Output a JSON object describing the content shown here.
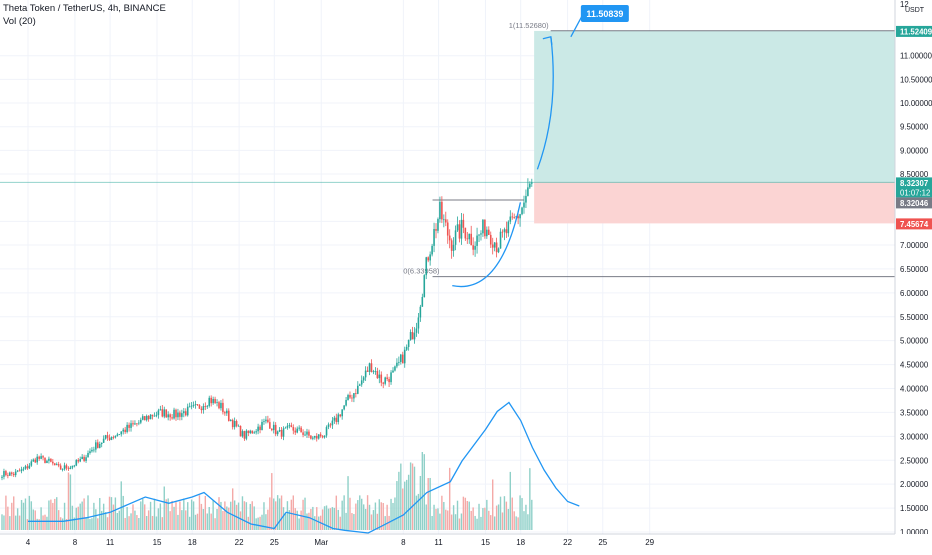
{
  "header": {
    "symbol_line": "Theta Token / TetherUS, 4h, BINANCE",
    "indicator_line": "Vol (20)"
  },
  "colors": {
    "up": "#26a69a",
    "down": "#ef5350",
    "vol_up": "#8fd0c8",
    "vol_down": "#f4a9a7",
    "vol_ma": "#2196f3",
    "target_zone": "#cbe9e6",
    "stop_zone": "#fbd4d3",
    "annotation": "#2196f3",
    "grid": "#f0f3fa",
    "axis_text": "#131722"
  },
  "chart_data": {
    "type": "candlestick",
    "title": "Theta Token / TetherUS, 4h, BINANCE",
    "price_axis": {
      "unit": "USDT",
      "min": 1.0,
      "max": 12.0,
      "tick_labels": [
        "1.00000",
        "1.50000",
        "2.00000",
        "2.50000",
        "3.00000",
        "3.50000",
        "4.00000",
        "4.50000",
        "5.00000",
        "5.50000",
        "6.00000",
        "6.50000",
        "7.00000",
        "7.50000",
        "8.50000",
        "9.00000",
        "9.50000",
        "10.00000",
        "10.50000",
        "11.00000"
      ],
      "tick_values": [
        1.0,
        1.5,
        2.0,
        2.5,
        3.0,
        3.5,
        4.0,
        4.5,
        5.0,
        5.5,
        6.0,
        6.5,
        7.0,
        7.5,
        8.5,
        9.0,
        9.5,
        10.0,
        10.5,
        11.0
      ],
      "top_tick": "12"
    },
    "time_axis": {
      "labels": [
        "4",
        "8",
        "11",
        "15",
        "18",
        "22",
        "25",
        "Mar",
        "8",
        "11",
        "15",
        "18",
        "22",
        "25",
        "29"
      ],
      "label_dates": [
        "2021-02-04",
        "2021-02-08",
        "2021-02-11",
        "2021-02-15",
        "2021-02-18",
        "2021-02-22",
        "2021-02-25",
        "2021-03-01",
        "2021-03-08",
        "2021-03-11",
        "2021-03-15",
        "2021-03-18",
        "2021-03-22",
        "2021-03-25",
        "2021-03-29"
      ],
      "start": "2021-02-01",
      "end": "2021-03-30"
    },
    "price_badges": [
      {
        "value": 11.52409,
        "label": "11.52409",
        "color": "#26a69a"
      },
      {
        "value": 8.32307,
        "label": "8.32307",
        "sublabel": "01:07:12",
        "color": "#26a69a"
      },
      {
        "value": 8.32046,
        "label": "8.32046",
        "color": "#787b86"
      },
      {
        "value": 7.45674,
        "label": "7.45674",
        "color": "#ef5350"
      }
    ],
    "fib_levels": [
      {
        "label": "1(11.52680)",
        "value": 11.5268
      },
      {
        "label": "0(6.33958)",
        "value": 6.33958
      }
    ],
    "target_annotation": "11.50839",
    "position": {
      "entry": 8.32307,
      "target": 11.52409,
      "stop": 7.45674
    },
    "volume": {
      "series_name": "Vol (20)",
      "ma_points": [
        [
          1,
          1.38
        ],
        [
          4,
          1.38
        ],
        [
          6,
          1.42
        ],
        [
          8,
          1.48
        ],
        [
          11,
          1.65
        ],
        [
          13,
          1.58
        ],
        [
          15,
          1.65
        ],
        [
          16,
          1.7
        ],
        [
          18,
          1.48
        ],
        [
          20,
          1.35
        ],
        [
          22,
          1.3
        ],
        [
          23,
          1.48
        ],
        [
          25,
          1.42
        ],
        [
          27,
          1.3
        ],
        [
          28,
          1.28
        ],
        [
          30,
          1.25
        ],
        [
          33,
          1.45
        ],
        [
          35,
          1.7
        ],
        [
          37,
          1.82
        ],
        [
          38,
          2.05
        ],
        [
          40,
          2.4
        ],
        [
          41,
          2.6
        ],
        [
          42,
          2.7
        ],
        [
          43,
          2.5
        ],
        [
          44,
          2.2
        ],
        [
          45,
          1.95
        ],
        [
          46,
          1.75
        ],
        [
          47,
          1.6
        ],
        [
          48,
          1.55
        ]
      ]
    },
    "candle_keypoints": [
      [
        0,
        2.22
      ],
      [
        1,
        2.21
      ],
      [
        2,
        2.32
      ],
      [
        3,
        2.55
      ],
      [
        4,
        2.48
      ],
      [
        5,
        2.32
      ],
      [
        6,
        2.38
      ],
      [
        7,
        2.52
      ],
      [
        8,
        2.78
      ],
      [
        9,
        2.95
      ],
      [
        10,
        3.05
      ],
      [
        11,
        3.18
      ],
      [
        12,
        3.3
      ],
      [
        13,
        3.45
      ],
      [
        14,
        3.5
      ],
      [
        15,
        3.45
      ],
      [
        16,
        3.52
      ],
      [
        17,
        3.6
      ],
      [
        18,
        3.78
      ],
      [
        19,
        3.62
      ],
      [
        20,
        3.3
      ],
      [
        21,
        3.0
      ],
      [
        22,
        3.15
      ],
      [
        23,
        3.32
      ],
      [
        24,
        3.05
      ],
      [
        25,
        3.15
      ],
      [
        26,
        3.1
      ],
      [
        27,
        2.95
      ],
      [
        28,
        3.05
      ],
      [
        29,
        3.35
      ],
      [
        30,
        3.75
      ],
      [
        31,
        4.05
      ],
      [
        32,
        4.5
      ],
      [
        33,
        4.15
      ],
      [
        34,
        4.3
      ],
      [
        35,
        4.75
      ],
      [
        36,
        5.4
      ],
      [
        37,
        6.8
      ],
      [
        38,
        7.7
      ],
      [
        39,
        7.05
      ],
      [
        40,
        7.38
      ],
      [
        41,
        7.05
      ],
      [
        42,
        7.4
      ],
      [
        43,
        7.0
      ],
      [
        44,
        7.35
      ],
      [
        45,
        7.7
      ],
      [
        46,
        8.32
      ]
    ]
  }
}
